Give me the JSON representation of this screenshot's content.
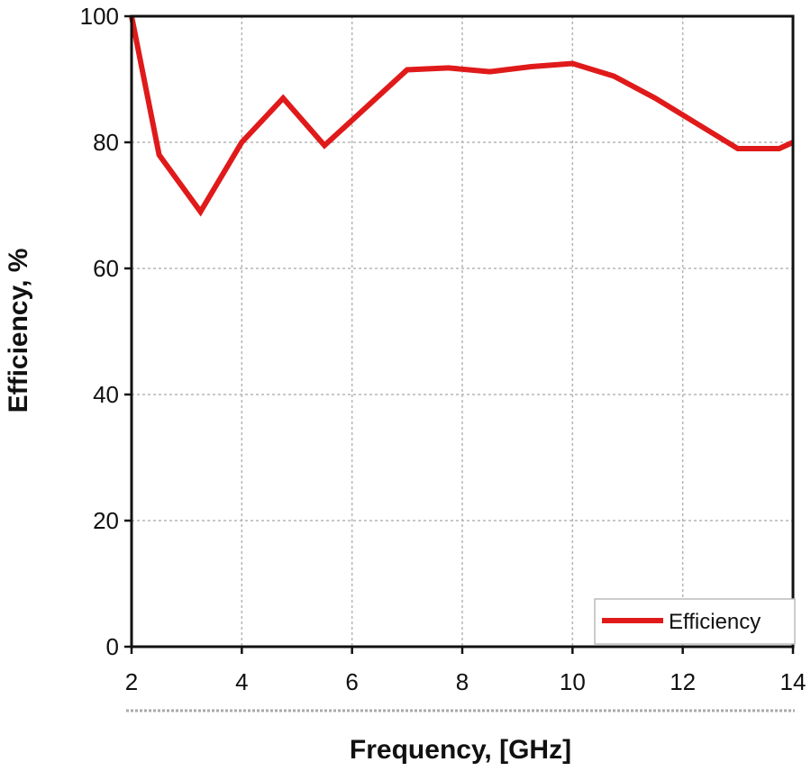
{
  "chart_data": {
    "type": "line",
    "title": "",
    "xlabel": "Frequency, [GHz]",
    "ylabel": "Efficiency, %",
    "xlim": [
      2,
      14
    ],
    "ylim": [
      0,
      100
    ],
    "xticks": [
      2,
      4,
      6,
      8,
      10,
      12,
      14
    ],
    "yticks": [
      0,
      20,
      40,
      60,
      80,
      100
    ],
    "xtick_labels": [
      "2",
      "4",
      "6",
      "8",
      "10",
      "12",
      "14"
    ],
    "ytick_labels": [
      "0",
      "20",
      "40",
      "60",
      "80",
      "100"
    ],
    "grid": true,
    "legend_position": "bottom-right",
    "series": [
      {
        "name": "Efficiency",
        "color": "#e01a1a",
        "x": [
          2.0,
          2.5,
          3.25,
          4.0,
          4.75,
          5.5,
          6.25,
          7.0,
          7.75,
          8.5,
          9.25,
          10.0,
          10.75,
          11.5,
          12.25,
          13.0,
          13.75,
          14.0
        ],
        "y": [
          100,
          78,
          69,
          80,
          87,
          79.5,
          85.5,
          91.5,
          91.8,
          91.2,
          92.0,
          92.5,
          90.5,
          87.0,
          83.0,
          79.0,
          79.0,
          80.0
        ]
      }
    ]
  }
}
